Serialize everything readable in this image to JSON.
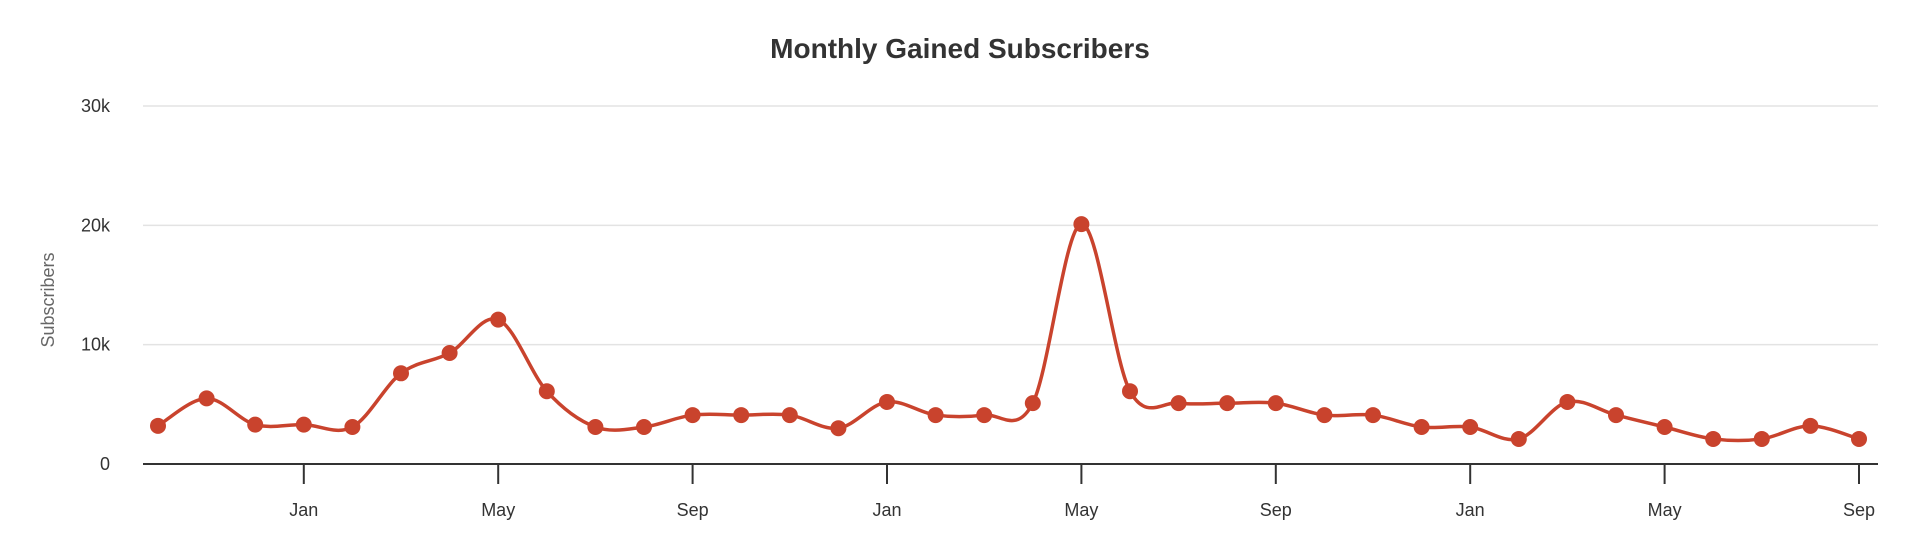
{
  "chart_data": {
    "type": "line",
    "title": "Monthly Gained Subscribers",
    "xlabel": "",
    "ylabel": "Subscribers",
    "ylim": [
      0,
      30000
    ],
    "y_ticks": [
      {
        "value": 0,
        "label": "0"
      },
      {
        "value": 10000,
        "label": "10k"
      },
      {
        "value": 20000,
        "label": "20k"
      },
      {
        "value": 30000,
        "label": "30k"
      }
    ],
    "x_ticks": [
      {
        "index": 3,
        "label": "Jan"
      },
      {
        "index": 7,
        "label": "May"
      },
      {
        "index": 11,
        "label": "Sep"
      },
      {
        "index": 15,
        "label": "Jan"
      },
      {
        "index": 19,
        "label": "May"
      },
      {
        "index": 23,
        "label": "Sep"
      },
      {
        "index": 27,
        "label": "Jan"
      },
      {
        "index": 31,
        "label": "May"
      },
      {
        "index": 35,
        "label": "Sep"
      }
    ],
    "grid": true,
    "legend": "none",
    "series": [
      {
        "color": "#c9432d",
        "values": [
          3200,
          5500,
          3300,
          3300,
          3100,
          7600,
          9300,
          12100,
          6100,
          3100,
          3100,
          4100,
          4100,
          4100,
          3000,
          5200,
          4100,
          4100,
          5100,
          20100,
          6100,
          5100,
          5100,
          5100,
          4100,
          4100,
          3100,
          3100,
          2100,
          5200,
          4100,
          3100,
          2100,
          2100,
          3200,
          2100
        ]
      }
    ]
  }
}
